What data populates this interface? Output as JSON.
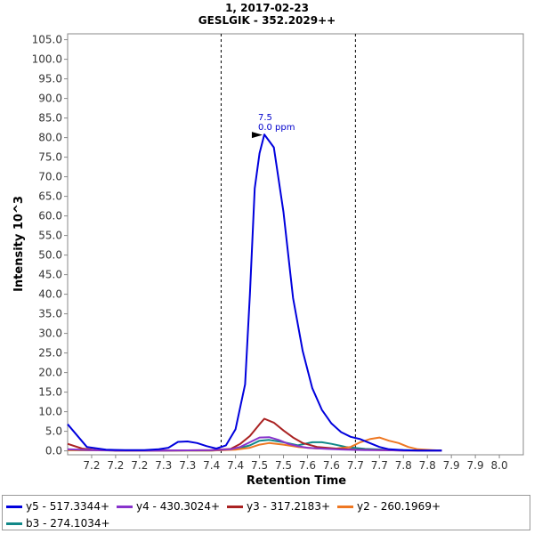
{
  "chart_data": {
    "type": "line",
    "title": "1, 2017-02-23",
    "subtitle": "GESLGIK - 352.2029++",
    "xlabel": "Retention Time",
    "ylabel": "Intensity 10^3",
    "xlim": [
      7.1,
      8.05
    ],
    "ylim": [
      -1.0,
      106.5
    ],
    "y_ticks": [
      0.0,
      5.0,
      10.0,
      15.0,
      20.0,
      25.0,
      30.0,
      35.0,
      40.0,
      45.0,
      50.0,
      55.0,
      60.0,
      65.0,
      70.0,
      75.0,
      80.0,
      85.0,
      90.0,
      95.0,
      100.0,
      105.0
    ],
    "y_tick_labels": [
      "0.0",
      "5.0",
      "10.0",
      "15.0",
      "20.0",
      "25.0",
      "30.0",
      "35.0",
      "40.0",
      "45.0",
      "50.0",
      "55.0",
      "60.0",
      "65.0",
      "70.0",
      "75.0",
      "80.0",
      "85.0",
      "90.0",
      "95.0",
      "100.0",
      "105.0"
    ],
    "x_ticks": [
      7.15,
      7.2,
      7.25,
      7.3,
      7.35,
      7.4,
      7.45,
      7.5,
      7.55,
      7.6,
      7.65,
      7.7,
      7.75,
      7.8,
      7.85,
      7.9,
      7.95,
      8.0
    ],
    "x_tick_labels": [
      "7.2",
      "7.2",
      "7.2",
      "7.3",
      "7.3",
      "7.4",
      "7.4",
      "7.5",
      "7.5",
      "7.6",
      "7.6",
      "7.7",
      "7.7",
      "7.8",
      "7.8",
      "7.9",
      "7.9",
      "8.0"
    ],
    "boundaries": [
      7.42,
      7.7
    ],
    "annotation": {
      "x": 7.51,
      "y": 80.8,
      "labels": [
        "7.5",
        "0.0 ppm"
      ]
    },
    "legend_position": "bottom",
    "grid": false,
    "series": [
      {
        "name": "y5 - 517.3344+",
        "color": "#0000dd",
        "x": [
          7.1,
          7.14,
          7.18,
          7.22,
          7.26,
          7.29,
          7.31,
          7.33,
          7.35,
          7.37,
          7.39,
          7.41,
          7.43,
          7.45,
          7.47,
          7.48,
          7.49,
          7.5,
          7.51,
          7.53,
          7.55,
          7.57,
          7.59,
          7.61,
          7.63,
          7.65,
          7.67,
          7.69,
          7.71,
          7.73,
          7.75,
          7.77,
          7.8,
          7.83,
          7.86,
          7.88
        ],
        "y": [
          6.8,
          1.0,
          0.3,
          0.2,
          0.2,
          0.4,
          0.8,
          2.3,
          2.4,
          2.0,
          1.2,
          0.6,
          1.4,
          5.5,
          17.0,
          40.0,
          67.0,
          76.0,
          80.8,
          77.5,
          61.0,
          39.0,
          25.5,
          16.0,
          10.5,
          7.0,
          4.8,
          3.6,
          3.0,
          2.0,
          1.0,
          0.4,
          0.2,
          0.1,
          0.1,
          0.1
        ]
      },
      {
        "name": "y4 - 430.3024+",
        "color": "#8833cc",
        "x": [
          7.1,
          7.15,
          7.2,
          7.3,
          7.4,
          7.44,
          7.46,
          7.48,
          7.5,
          7.52,
          7.54,
          7.56,
          7.58,
          7.6,
          7.64,
          7.68,
          7.72,
          7.76,
          7.8,
          7.85,
          7.88
        ],
        "y": [
          0.4,
          0.2,
          0.1,
          0.1,
          0.2,
          0.4,
          1.0,
          2.2,
          3.4,
          3.5,
          2.8,
          1.8,
          1.2,
          0.8,
          0.5,
          0.3,
          0.2,
          0.2,
          0.1,
          0.1,
          0.1
        ]
      },
      {
        "name": "y3 - 317.2183+",
        "color": "#aa2222",
        "x": [
          7.1,
          7.13,
          7.16,
          7.2,
          7.3,
          7.4,
          7.44,
          7.46,
          7.48,
          7.5,
          7.51,
          7.53,
          7.55,
          7.57,
          7.59,
          7.62,
          7.66,
          7.7,
          7.75,
          7.8,
          7.85,
          7.88
        ],
        "y": [
          1.8,
          0.6,
          0.2,
          0.1,
          0.1,
          0.2,
          0.5,
          1.8,
          3.8,
          6.8,
          8.2,
          7.2,
          5.2,
          3.4,
          2.0,
          1.0,
          0.6,
          0.3,
          0.2,
          0.1,
          0.1,
          0.1
        ]
      },
      {
        "name": "y2 - 260.1969+",
        "color": "#ee7722",
        "x": [
          7.1,
          7.2,
          7.4,
          7.45,
          7.48,
          7.5,
          7.52,
          7.55,
          7.58,
          7.62,
          7.66,
          7.69,
          7.71,
          7.73,
          7.75,
          7.77,
          7.79,
          7.81,
          7.83,
          7.86,
          7.88
        ],
        "y": [
          0.2,
          0.1,
          0.1,
          0.3,
          0.8,
          1.6,
          2.0,
          1.6,
          1.0,
          0.6,
          0.6,
          1.0,
          2.2,
          3.0,
          3.4,
          2.6,
          2.0,
          1.0,
          0.4,
          0.2,
          0.1
        ]
      },
      {
        "name": "b3 - 274.1034+",
        "color": "#118888",
        "x": [
          7.1,
          7.2,
          7.4,
          7.45,
          7.48,
          7.5,
          7.52,
          7.55,
          7.58,
          7.61,
          7.63,
          7.65,
          7.68,
          7.72,
          7.76,
          7.8,
          7.85,
          7.88
        ],
        "y": [
          0.2,
          0.1,
          0.1,
          0.4,
          1.4,
          2.6,
          2.8,
          2.2,
          1.4,
          2.2,
          2.2,
          1.8,
          1.0,
          0.5,
          0.3,
          0.2,
          0.1,
          0.1
        ]
      }
    ]
  }
}
